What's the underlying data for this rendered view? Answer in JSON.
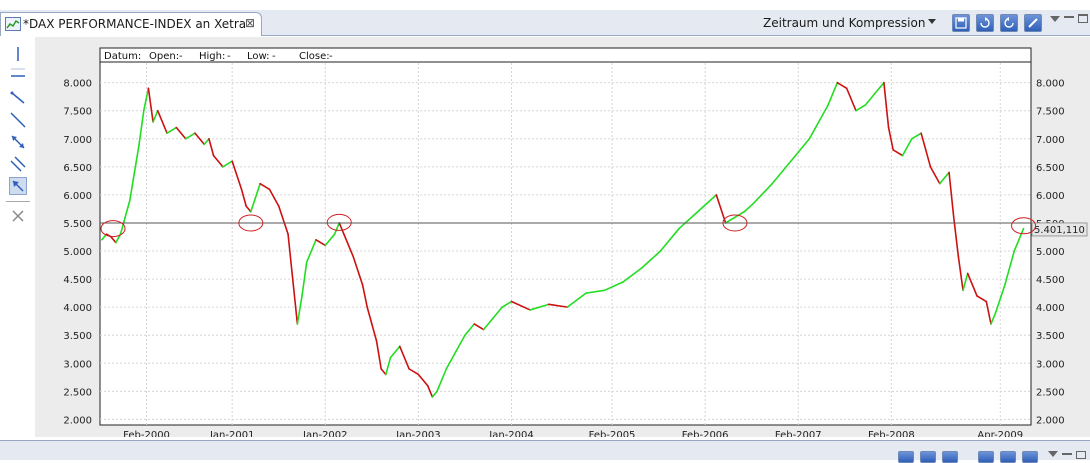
{
  "tab": {
    "title": "*DAX PERFORMANCE-INDEX an Xetra",
    "close_glyph": "⊠"
  },
  "toolbar": {
    "period_label": "Zeitraum und Kompression",
    "buttons": [
      "save-icon",
      "refresh-icon",
      "reload-icon",
      "edit-icon"
    ]
  },
  "left_tools": [
    "vertical-line-icon",
    "horizontal-line-icon",
    "trend-line-icon",
    "line-segment-icon",
    "resize-line-icon",
    "parallel-lines-icon",
    "select-arrow-icon",
    "delete-icon"
  ],
  "ohlc_header": {
    "datum_label": "Datum:",
    "open_label": "Open:",
    "open_value": "-",
    "high_label": "High:",
    "high_value": "-",
    "low_label": "Low:",
    "low_value": "-",
    "close_label": "Close:",
    "close_value": "-"
  },
  "colors": {
    "up": "#22dd22",
    "down": "#cc1111",
    "accent": "#2e5fb8",
    "marker": "#cc2222"
  },
  "chart_data": {
    "type": "line",
    "title": "",
    "xlabel": "",
    "ylabel": "",
    "x_tick_labels": [
      "Feb-2000",
      "Jan-2001",
      "Jan-2002",
      "Jan-2003",
      "Jan-2004",
      "Feb-2005",
      "Feb-2006",
      "Feb-2007",
      "Feb-2008",
      "Apr-2009"
    ],
    "x_tick_years": [
      2000.08,
      2001.0,
      2002.0,
      2003.0,
      2004.0,
      2005.08,
      2006.08,
      2007.08,
      2008.08,
      2009.25
    ],
    "y_ticks": [
      2000,
      2500,
      3000,
      3500,
      4000,
      4500,
      5000,
      5500,
      6000,
      6500,
      7000,
      7500,
      8000
    ],
    "y_tick_labels": [
      "2.000",
      "2.500",
      "3.000",
      "3.500",
      "4.000",
      "4.500",
      "5.000",
      "5.500",
      "6.000",
      "6.500",
      "7.000",
      "7.500",
      "8.000"
    ],
    "ylim": [
      1900,
      8350
    ],
    "xlim": [
      1999.58,
      2009.58
    ],
    "grid": true,
    "reference_line": {
      "value": 5500,
      "label": "5.401,110"
    },
    "marked_points": [
      {
        "year": 1999.72,
        "value": 5400
      },
      {
        "year": 2001.2,
        "value": 5500
      },
      {
        "year": 2002.15,
        "value": 5510
      },
      {
        "year": 2006.4,
        "value": 5500
      },
      {
        "year": 2009.5,
        "value": 5450
      }
    ],
    "series": [
      {
        "x": [
          1999.6,
          1999.65,
          1999.7,
          1999.75,
          1999.8,
          1999.85,
          1999.9,
          1999.95,
          2000.0,
          2000.05,
          2000.1,
          2000.15,
          2000.2,
          2000.3,
          2000.4,
          2000.5,
          2000.6,
          2000.7,
          2000.75,
          2000.8,
          2000.9,
          2001.0,
          2001.1,
          2001.15,
          2001.2,
          2001.3,
          2001.4,
          2001.5,
          2001.6,
          2001.65,
          2001.7,
          2001.75,
          2001.8,
          2001.9,
          2002.0,
          2002.1,
          2002.15,
          2002.2,
          2002.3,
          2002.4,
          2002.45,
          2002.5,
          2002.55,
          2002.6,
          2002.65,
          2002.7,
          2002.8,
          2002.9,
          2003.0,
          2003.1,
          2003.15,
          2003.2,
          2003.3,
          2003.4,
          2003.5,
          2003.6,
          2003.7,
          2003.8,
          2003.9,
          2004.0,
          2004.2,
          2004.4,
          2004.6,
          2004.8,
          2005.0,
          2005.2,
          2005.4,
          2005.6,
          2005.8,
          2006.0,
          2006.2,
          2006.3,
          2006.4,
          2006.5,
          2006.6,
          2006.8,
          2007.0,
          2007.2,
          2007.4,
          2007.5,
          2007.6,
          2007.7,
          2007.8,
          2007.9,
          2008.0,
          2008.05,
          2008.1,
          2008.2,
          2008.3,
          2008.4,
          2008.5,
          2008.6,
          2008.7,
          2008.75,
          2008.8,
          2008.85,
          2008.9,
          2009.0,
          2009.1,
          2009.15,
          2009.2,
          2009.3,
          2009.4,
          2009.5
        ],
        "values": [
          5200,
          5300,
          5250,
          5150,
          5300,
          5600,
          5900,
          6400,
          6900,
          7500,
          7900,
          7300,
          7500,
          7100,
          7200,
          7000,
          7100,
          6900,
          7000,
          6700,
          6500,
          6600,
          6100,
          5800,
          5700,
          6200,
          6100,
          5800,
          5300,
          4500,
          3700,
          4200,
          4800,
          5200,
          5100,
          5300,
          5500,
          5300,
          4900,
          4400,
          4000,
          3700,
          3400,
          2900,
          2800,
          3100,
          3300,
          2900,
          2800,
          2600,
          2400,
          2500,
          2900,
          3200,
          3500,
          3700,
          3600,
          3800,
          4000,
          4100,
          3950,
          4050,
          4000,
          4250,
          4300,
          4450,
          4700,
          5000,
          5400,
          5700,
          6000,
          5500,
          5600,
          5700,
          5850,
          6200,
          6600,
          7000,
          7600,
          8000,
          7900,
          7500,
          7600,
          7800,
          8000,
          7200,
          6800,
          6700,
          7000,
          7100,
          6500,
          6200,
          6400,
          5600,
          4900,
          4300,
          4600,
          4200,
          4100,
          3700,
          3900,
          4400,
          5000,
          5400
        ]
      }
    ]
  }
}
